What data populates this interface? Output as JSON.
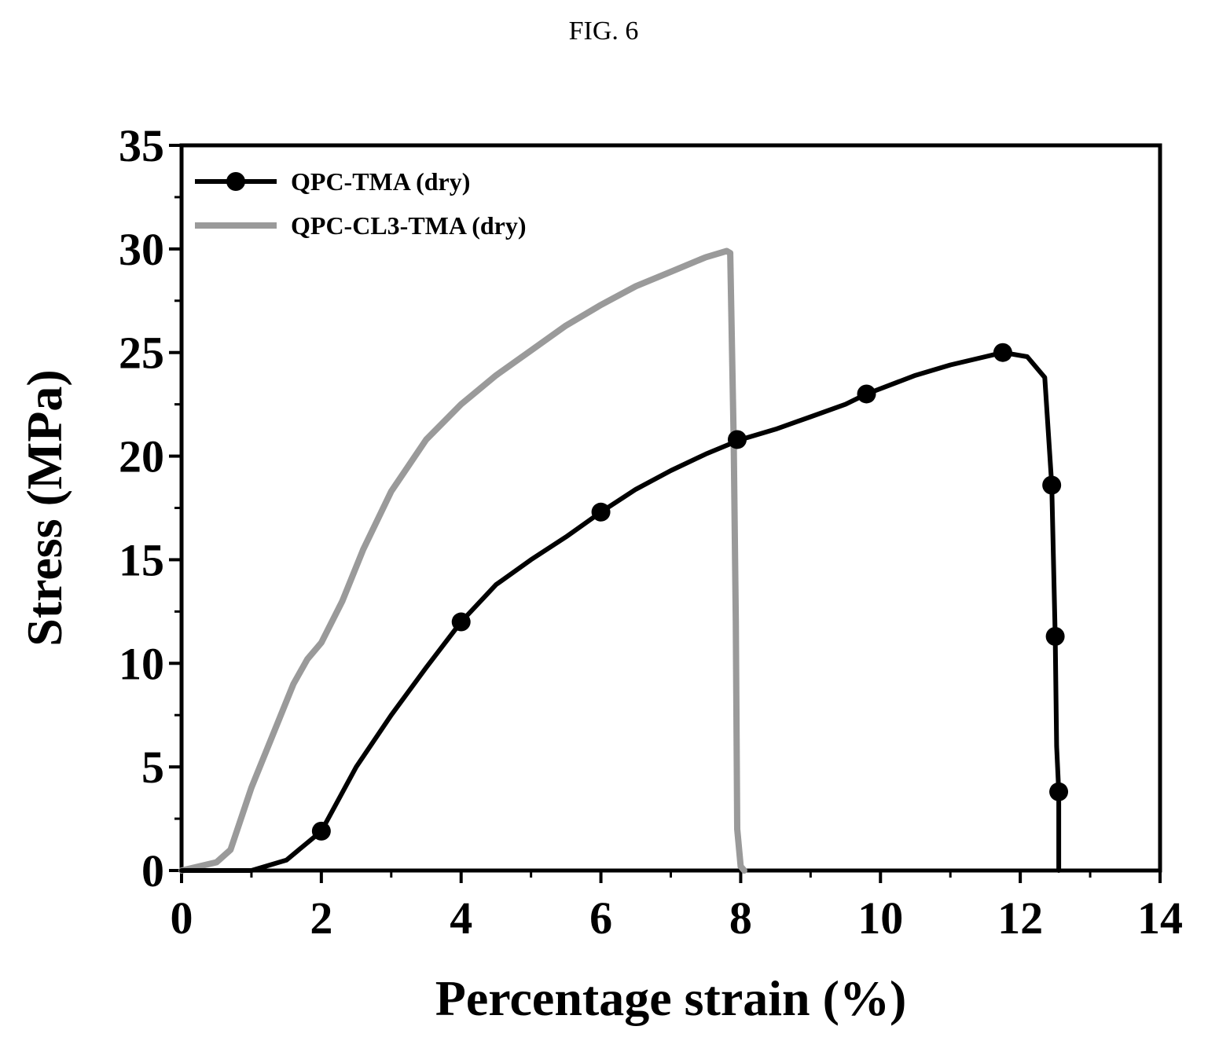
{
  "figure_label": "FIG. 6",
  "chart_data": {
    "type": "line",
    "xlabel": "Percentage strain (%)",
    "ylabel": "Stress (MPa)",
    "xlim": [
      0,
      14
    ],
    "ylim": [
      0,
      35
    ],
    "xticks": [
      0,
      2,
      4,
      6,
      8,
      10,
      12,
      14
    ],
    "yticks": [
      0,
      5,
      10,
      15,
      20,
      25,
      30,
      35
    ],
    "grid": false,
    "legend_position": "top-left",
    "series": [
      {
        "name": "QPC-TMA (dry)",
        "color": "#000000",
        "marker": "circle",
        "x": [
          0,
          1.0,
          1.5,
          2.0,
          2.5,
          3.0,
          3.5,
          4.0,
          4.5,
          5.0,
          5.5,
          6.0,
          6.5,
          7.0,
          7.5,
          8.0,
          8.5,
          9.0,
          9.5,
          9.8,
          10.5,
          11.0,
          11.5,
          11.75,
          12.1,
          12.35,
          12.45,
          12.5,
          12.52,
          12.55,
          12.55
        ],
        "y": [
          0,
          0,
          0.5,
          1.9,
          5.0,
          7.5,
          9.8,
          12.0,
          13.8,
          15.0,
          16.1,
          17.3,
          18.4,
          19.3,
          20.1,
          20.8,
          21.3,
          21.9,
          22.5,
          23.0,
          23.9,
          24.4,
          24.8,
          25.0,
          24.8,
          23.8,
          18.6,
          11.3,
          6.0,
          3.8,
          0
        ],
        "marker_x": [
          2.0,
          4.0,
          6.0,
          7.95,
          9.8,
          11.75,
          12.45,
          12.5,
          12.55
        ],
        "marker_y": [
          1.9,
          12.0,
          17.3,
          20.8,
          23.0,
          25.0,
          18.6,
          11.3,
          3.8
        ]
      },
      {
        "name": "QPC-CL3-TMA (dry)",
        "color": "#9a9a9a",
        "marker": "none",
        "x": [
          0,
          0.5,
          0.7,
          1.0,
          1.3,
          1.6,
          1.8,
          2.0,
          2.3,
          2.6,
          3.0,
          3.5,
          4.0,
          4.5,
          5.0,
          5.5,
          6.0,
          6.5,
          7.0,
          7.5,
          7.8,
          7.85,
          7.9,
          7.93,
          7.95,
          8.0,
          8.05
        ],
        "y": [
          0,
          0.4,
          1.0,
          4.0,
          6.5,
          9.0,
          10.2,
          11.0,
          13.0,
          15.5,
          18.3,
          20.8,
          22.5,
          23.9,
          25.1,
          26.3,
          27.3,
          28.2,
          28.9,
          29.6,
          29.9,
          29.8,
          20.8,
          12.0,
          2.0,
          0.2,
          0
        ]
      }
    ]
  }
}
